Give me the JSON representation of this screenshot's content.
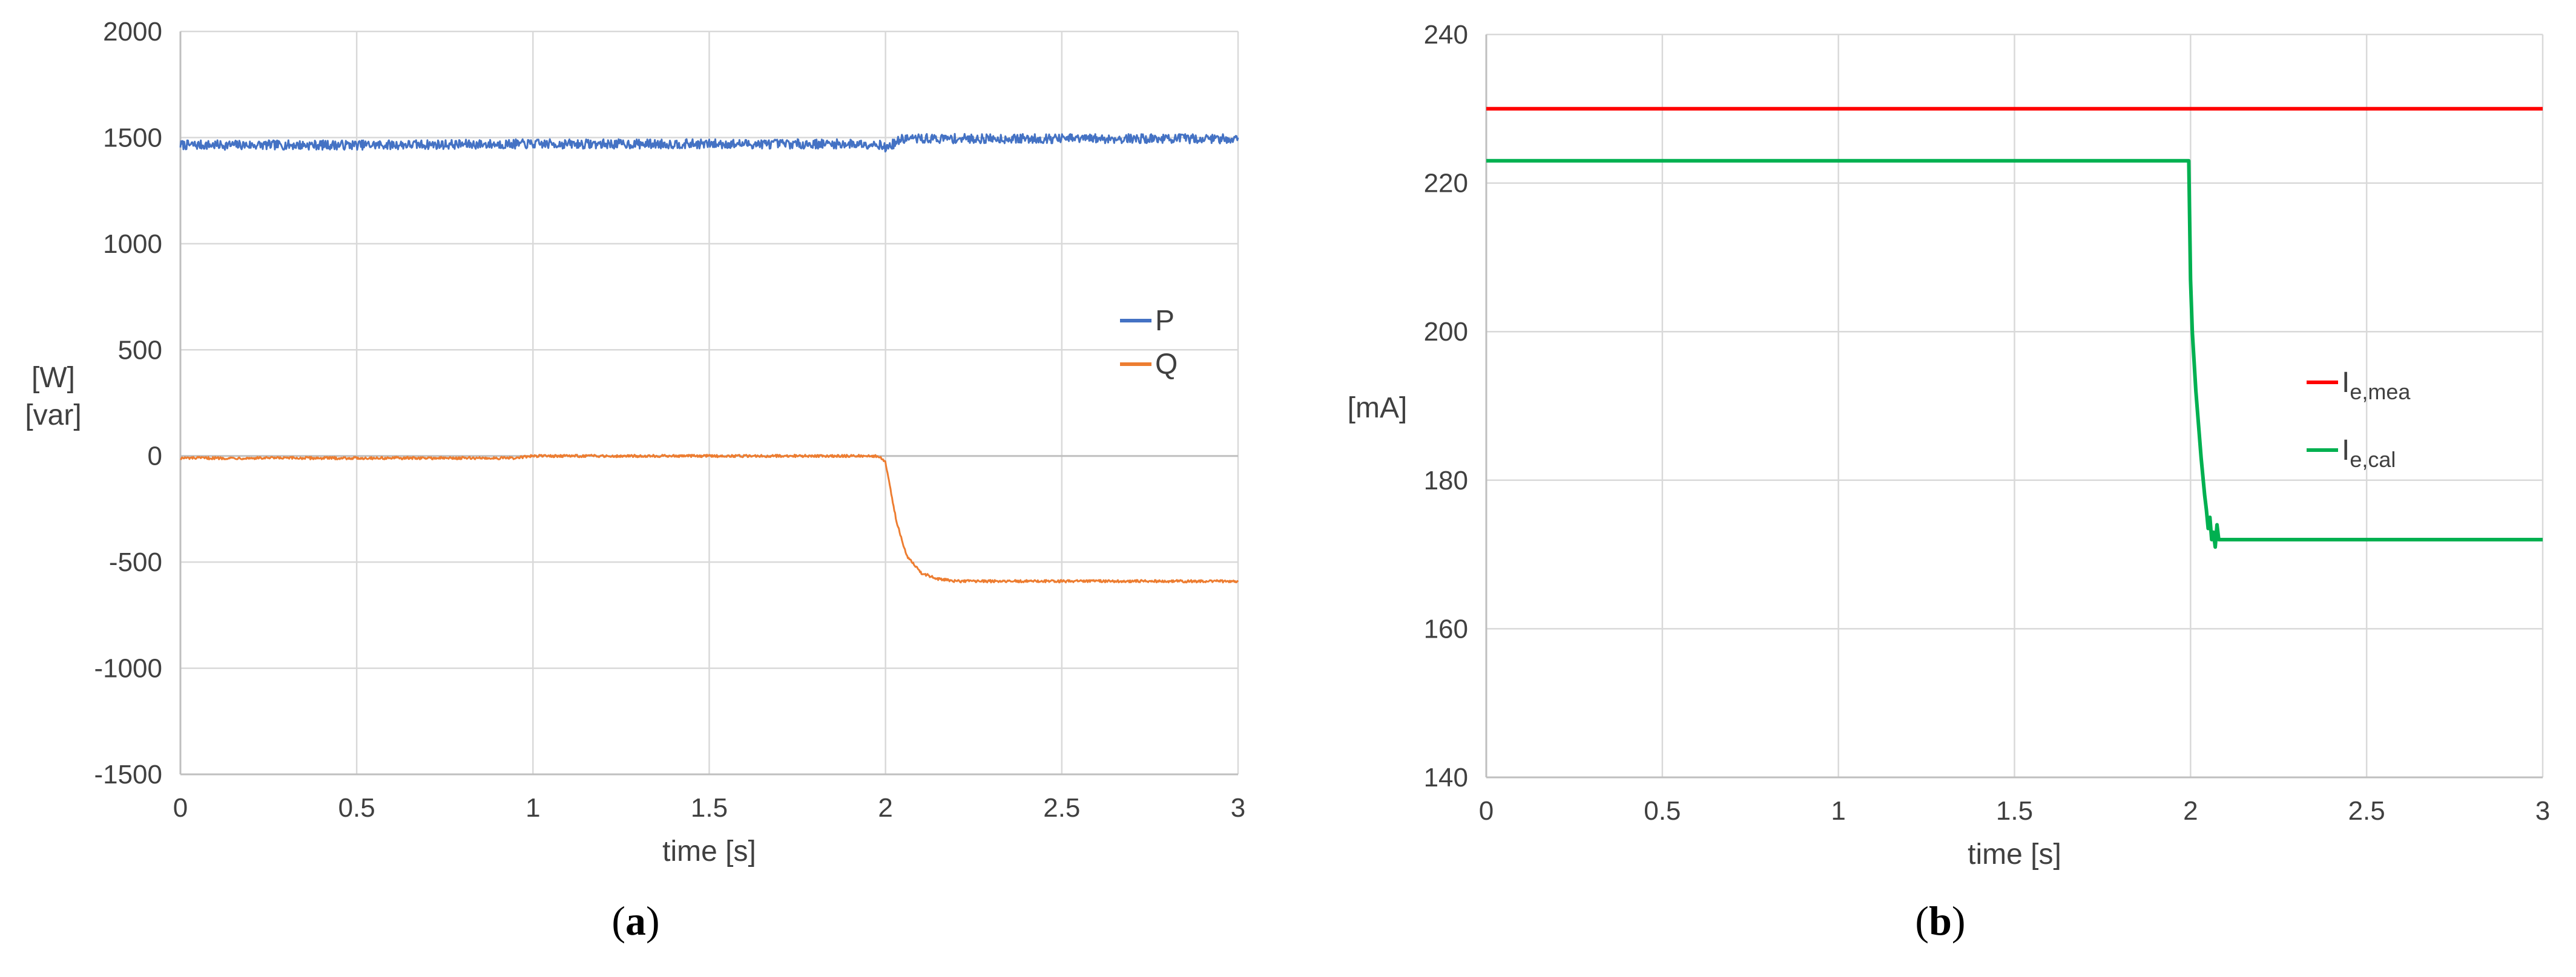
{
  "charts": [
    {
      "id": "a",
      "chart_data": {
        "type": "line",
        "caption": "a",
        "xlabel": "time [s]",
        "ylabel_lines": [
          {
            "text": "[W]",
            "color": "#2E75B6"
          },
          {
            "text": "[var]",
            "color": "#ED7D31"
          }
        ],
        "xlim": [
          0,
          3
        ],
        "ylim": [
          -1500,
          2000
        ],
        "xticks": [
          0,
          0.5,
          1,
          1.5,
          2,
          2.5,
          3
        ],
        "xtick_labels": [
          "0",
          "0.5",
          "1",
          "1.5",
          "2",
          "2.5",
          "3"
        ],
        "yticks": [
          -1500,
          -1000,
          -500,
          0,
          500,
          1000,
          1500,
          2000
        ],
        "ytick_labels": [
          "-1500",
          "-1000",
          "-500",
          "0",
          "500",
          "1000",
          "1500",
          "2000"
        ],
        "grid": true,
        "legend_position": "right",
        "series": [
          {
            "name": "P",
            "color": "#4472C4",
            "noise": 45,
            "x": [
              0,
              0.5,
              1,
              1.5,
              1.98,
              2.0,
              2.05,
              2.5,
              3
            ],
            "y": [
              1465,
              1465,
              1470,
              1470,
              1470,
              1450,
              1495,
              1495,
              1495
            ]
          },
          {
            "name": "Q",
            "color": "#ED7D31",
            "noise": 12,
            "x": [
              0,
              0.5,
              0.95,
              1.0,
              1.5,
              1.98,
              2.0,
              2.03,
              2.06,
              2.1,
              2.15,
              2.2,
              2.5,
              3
            ],
            "y": [
              -10,
              -10,
              -10,
              0,
              0,
              0,
              -30,
              -300,
              -470,
              -550,
              -580,
              -590,
              -590,
              -590
            ]
          }
        ]
      }
    },
    {
      "id": "b",
      "chart_data": {
        "type": "line",
        "caption": "b",
        "xlabel": "time [s]",
        "ylabel_lines": [
          {
            "text": "[mA]",
            "color": "#262626"
          }
        ],
        "xlim": [
          0,
          3
        ],
        "ylim": [
          140,
          240
        ],
        "xticks": [
          0,
          0.5,
          1,
          1.5,
          2,
          2.5,
          3
        ],
        "xtick_labels": [
          "0",
          "0.5",
          "1",
          "1.5",
          "2",
          "2.5",
          "3"
        ],
        "yticks": [
          140,
          160,
          180,
          200,
          220,
          240
        ],
        "ytick_labels": [
          "140",
          "160",
          "180",
          "200",
          "220",
          "240"
        ],
        "grid": true,
        "legend_position": "right",
        "series": [
          {
            "name": "I",
            "name_sub": "e,mea",
            "color": "#FF0000",
            "noise": 0,
            "x": [
              0,
              3
            ],
            "y": [
              230,
              230
            ]
          },
          {
            "name": "I",
            "name_sub": "e,cal",
            "color": "#00B050",
            "noise": 0,
            "x": [
              0,
              1.995,
              2.0,
              2.005,
              2.015,
              2.03,
              2.04,
              2.045,
              2.05,
              2.055,
              2.06,
              2.065,
              2.07,
              2.075,
              2.08,
              3
            ],
            "y": [
              223,
              223,
              207,
              200,
              192,
              183,
              178,
              176,
              173.5,
              175,
              172,
              173,
              171,
              174,
              172,
              172
            ]
          }
        ]
      }
    }
  ]
}
